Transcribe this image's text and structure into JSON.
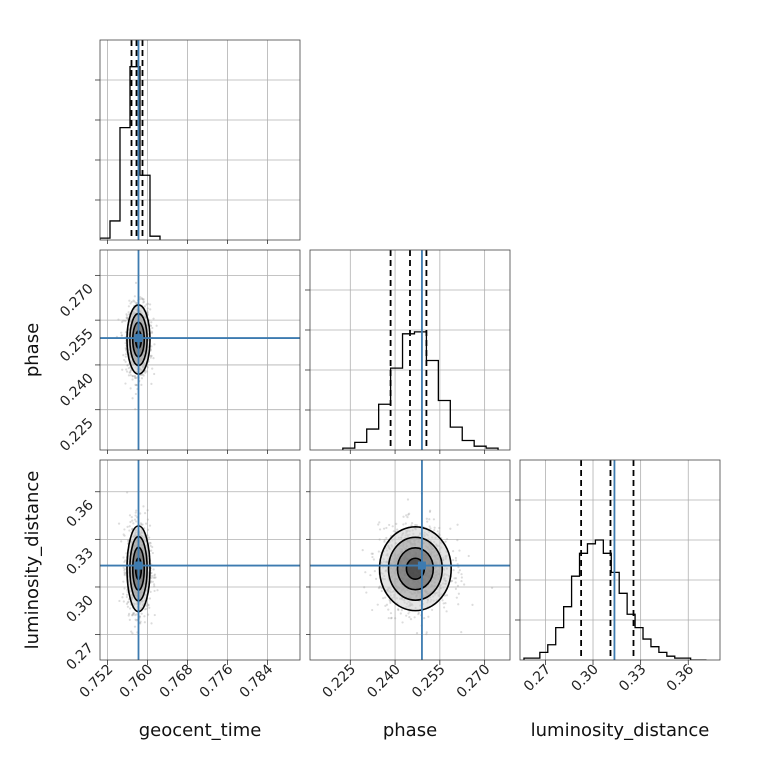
{
  "colors": {
    "truth": "#3d7bb0",
    "hist": "#000000",
    "contour": "#000000",
    "grid": "#b0b0b0",
    "scatter": "#9a9a9a",
    "background": "#ffffff"
  },
  "chart_data": {
    "type": "corner",
    "parameters": [
      {
        "name": "geocent_time",
        "range": [
          0.7505,
          0.7905
        ],
        "ticks": [
          0.752,
          0.76,
          0.768,
          0.776,
          0.784
        ],
        "tick_labels": [
          "0.752",
          "0.760",
          "0.768",
          "0.776",
          "0.784"
        ],
        "truth": 0.7582,
        "quantiles": [
          0.7568,
          0.7578,
          0.759
        ]
      },
      {
        "name": "phase",
        "range": [
          0.2115,
          0.2785
        ],
        "ticks": [
          0.225,
          0.24,
          0.255,
          0.27
        ],
        "tick_labels": [
          "0.225",
          "0.240",
          "0.255",
          "0.270"
        ],
        "truth": 0.249,
        "quantiles": [
          0.2385,
          0.245,
          0.2505
        ]
      },
      {
        "name": "luminosity_distance",
        "range": [
          0.254,
          0.38
        ],
        "ticks": [
          0.27,
          0.3,
          0.33,
          0.36
        ],
        "tick_labels": [
          "0.27",
          "0.30",
          "0.33",
          "0.36"
        ],
        "truth": 0.3135,
        "quantiles": [
          0.2925,
          0.311,
          0.3255
        ]
      }
    ],
    "histograms": [
      {
        "param": "geocent_time",
        "edges": [
          0.7505,
          0.7525,
          0.7545,
          0.7565,
          0.7585,
          0.7605,
          0.7625
        ],
        "counts": [
          1,
          10,
          59,
          91,
          34,
          2
        ]
      },
      {
        "param": "phase",
        "edges": [
          0.2225,
          0.2265,
          0.2305,
          0.2345,
          0.2385,
          0.2425,
          0.2465,
          0.2505,
          0.2545,
          0.2585,
          0.2625,
          0.2665,
          0.2705,
          0.2745
        ],
        "counts": [
          1,
          4,
          11,
          24,
          43,
          61,
          62,
          47,
          26,
          12,
          5,
          2,
          1
        ]
      },
      {
        "param": "luminosity_distance",
        "edges": [
          0.2565,
          0.2615,
          0.2665,
          0.2715,
          0.2765,
          0.2815,
          0.2865,
          0.2915,
          0.2965,
          0.3015,
          0.3065,
          0.3115,
          0.3165,
          0.3215,
          0.3265,
          0.3315,
          0.3365,
          0.3415,
          0.3465,
          0.3515,
          0.3565,
          0.3615,
          0.3665,
          0.3715
        ],
        "counts": [
          1,
          1,
          4,
          8,
          17,
          28,
          44,
          56,
          61,
          63,
          56,
          46,
          35,
          24,
          17,
          11,
          7,
          4,
          2,
          1,
          1,
          0,
          0
        ]
      }
    ],
    "hist_max_count": 105,
    "pairs": [
      {
        "x": "geocent_time",
        "y": "phase",
        "centre": [
          0.7582,
          0.2485
        ],
        "spread": [
          0.00115,
          0.0058
        ],
        "contours": [
          0.5,
          1.0,
          1.5,
          2.0
        ]
      },
      {
        "x": "geocent_time",
        "y": "luminosity_distance",
        "centre": [
          0.7582,
          0.3115
        ],
        "spread": [
          0.00115,
          0.0135
        ],
        "contours": [
          0.5,
          1.0,
          1.5,
          2.0
        ]
      },
      {
        "x": "phase",
        "y": "luminosity_distance",
        "centre": [
          0.2468,
          0.3115
        ],
        "spread": [
          0.006,
          0.0132
        ],
        "contours": [
          0.5,
          1.0,
          1.5,
          2.0
        ]
      }
    ],
    "grid": true
  }
}
